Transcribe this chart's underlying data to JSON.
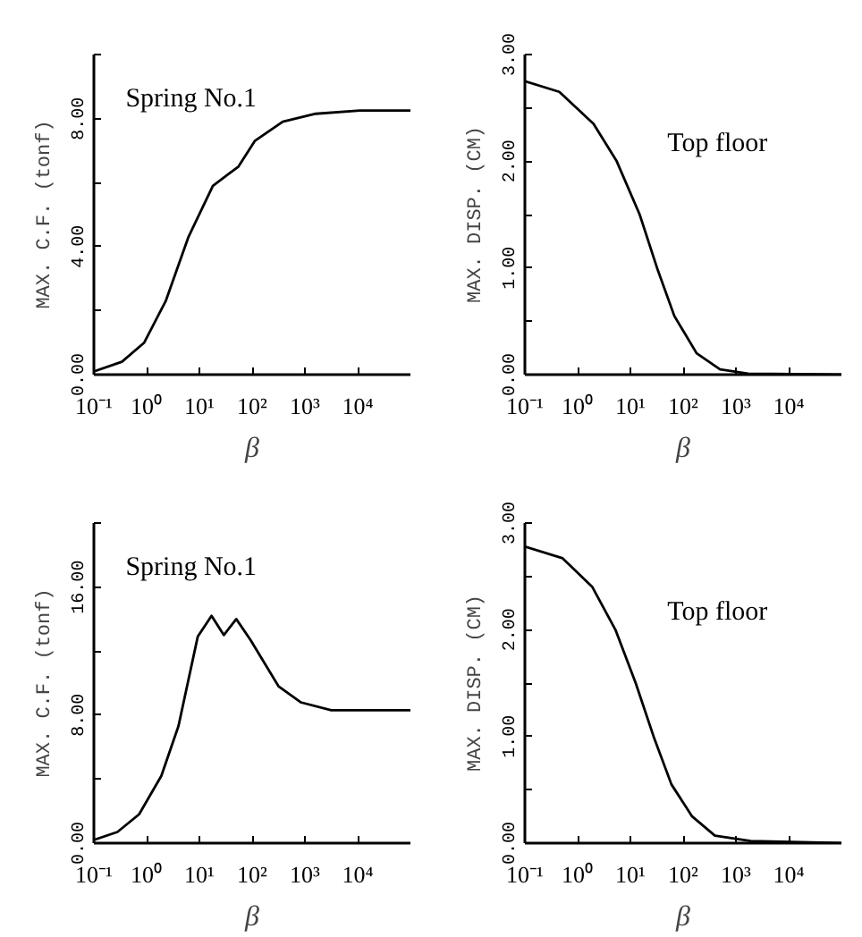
{
  "chart_data": [
    {
      "type": "line",
      "xlabel": "β",
      "ylabel": "MAX. C.F. (tonf)",
      "annotations": [
        "Spring No.1"
      ],
      "log": "x",
      "grid": false,
      "marker": "none",
      "line_style": "solid",
      "xlim": [
        0.1,
        100000
      ],
      "ylim": [
        0,
        10
      ],
      "xticks": [
        {
          "value": 0.1,
          "label": "10⁻¹"
        },
        {
          "value": 1,
          "label": "10⁰"
        },
        {
          "value": 10,
          "label": "10¹"
        },
        {
          "value": 100,
          "label": "10²"
        },
        {
          "value": 1000,
          "label": "10³"
        },
        {
          "value": 10000,
          "label": "10⁴"
        }
      ],
      "yticks": [
        {
          "value": 0,
          "label": "0.00"
        },
        {
          "value": 2,
          "label": null
        },
        {
          "value": 4,
          "label": "4.00"
        },
        {
          "value": 6,
          "label": null
        },
        {
          "value": 8,
          "label": "8.00"
        },
        {
          "value": 10,
          "label": null
        }
      ],
      "series": [
        {
          "color": "#000000",
          "x": [
            0.1,
            0.34,
            0.9,
            2.3,
            6.2,
            18,
            55,
            112,
            380,
            1600,
            11000,
            100000
          ],
          "values": [
            0.1,
            0.4,
            1.0,
            2.3,
            4.3,
            5.9,
            6.5,
            7.3,
            7.9,
            8.15,
            8.25,
            8.25
          ]
        }
      ]
    },
    {
      "type": "line",
      "xlabel": "β",
      "ylabel": "MAX. DISP. (CM)",
      "annotations": [
        "Top floor"
      ],
      "log": "x",
      "grid": false,
      "marker": "none",
      "line_style": "solid",
      "xlim": [
        0.1,
        100000
      ],
      "ylim": [
        0,
        3
      ],
      "xticks": [
        {
          "value": 0.1,
          "label": "10⁻¹"
        },
        {
          "value": 1,
          "label": "10⁰"
        },
        {
          "value": 10,
          "label": "10¹"
        },
        {
          "value": 100,
          "label": "10²"
        },
        {
          "value": 1000,
          "label": "10³"
        },
        {
          "value": 10000,
          "label": "10⁴"
        }
      ],
      "yticks": [
        {
          "value": 0,
          "label": "0.00"
        },
        {
          "value": 0.5,
          "label": null
        },
        {
          "value": 1,
          "label": "1.00"
        },
        {
          "value": 1.5,
          "label": null
        },
        {
          "value": 2,
          "label": "2.00"
        },
        {
          "value": 2.5,
          "label": null
        },
        {
          "value": 3,
          "label": "3.00"
        }
      ],
      "series": [
        {
          "color": "#000000",
          "x": [
            0.1,
            0.45,
            2,
            5.5,
            15,
            32,
            68,
            180,
            500,
            1700,
            100000
          ],
          "values": [
            2.75,
            2.65,
            2.35,
            2.0,
            1.5,
            1.0,
            0.55,
            0.2,
            0.05,
            0.01,
            0
          ]
        }
      ]
    },
    {
      "type": "line",
      "xlabel": "β",
      "ylabel": "MAX. C.F. (tonf)",
      "annotations": [
        "Spring No.1"
      ],
      "log": "x",
      "grid": false,
      "marker": "none",
      "line_style": "solid",
      "xlim": [
        0.1,
        100000
      ],
      "ylim": [
        0,
        20
      ],
      "xticks": [
        {
          "value": 0.1,
          "label": "10⁻¹"
        },
        {
          "value": 1,
          "label": "10⁰"
        },
        {
          "value": 10,
          "label": "10¹"
        },
        {
          "value": 100,
          "label": "10²"
        },
        {
          "value": 1000,
          "label": "10³"
        },
        {
          "value": 10000,
          "label": "10⁴"
        }
      ],
      "yticks": [
        {
          "value": 0,
          "label": "0.00"
        },
        {
          "value": 4,
          "label": null
        },
        {
          "value": 8,
          "label": "8.00"
        },
        {
          "value": 12,
          "label": null
        },
        {
          "value": 16,
          "label": "16.00"
        },
        {
          "value": 20,
          "label": null
        }
      ],
      "series": [
        {
          "color": "#000000",
          "x": [
            0.1,
            0.28,
            0.72,
            1.9,
            4,
            9.3,
            17,
            29,
            50,
            93,
            316,
            830,
            3160,
            100000
          ],
          "values": [
            0.2,
            0.7,
            1.8,
            4.2,
            7.3,
            12.9,
            14.2,
            13.0,
            14.0,
            12.7,
            9.8,
            8.8,
            8.3,
            8.3
          ]
        }
      ]
    },
    {
      "type": "line",
      "xlabel": "β",
      "ylabel": "MAX. DISP. (CM)",
      "annotations": [
        "Top floor"
      ],
      "log": "x",
      "grid": false,
      "marker": "none",
      "line_style": "solid",
      "xlim": [
        0.1,
        100000
      ],
      "ylim": [
        0,
        3
      ],
      "xticks": [
        {
          "value": 0.1,
          "label": "10⁻¹"
        },
        {
          "value": 1,
          "label": "10⁰"
        },
        {
          "value": 10,
          "label": "10¹"
        },
        {
          "value": 100,
          "label": "10²"
        },
        {
          "value": 1000,
          "label": "10³"
        },
        {
          "value": 10000,
          "label": "10⁴"
        }
      ],
      "yticks": [
        {
          "value": 0,
          "label": "0.00"
        },
        {
          "value": 0.5,
          "label": null
        },
        {
          "value": 1,
          "label": "1.00"
        },
        {
          "value": 1.5,
          "label": null
        },
        {
          "value": 2,
          "label": "2.00"
        },
        {
          "value": 2.5,
          "label": null
        },
        {
          "value": 3,
          "label": "3.00"
        }
      ],
      "series": [
        {
          "color": "#000000",
          "x": [
            0.1,
            0.52,
            1.9,
            5.2,
            12.6,
            27.5,
            60,
            148,
            400,
            1900,
            100000
          ],
          "values": [
            2.78,
            2.67,
            2.4,
            2.0,
            1.5,
            1.0,
            0.55,
            0.25,
            0.07,
            0.02,
            0
          ]
        }
      ]
    }
  ]
}
